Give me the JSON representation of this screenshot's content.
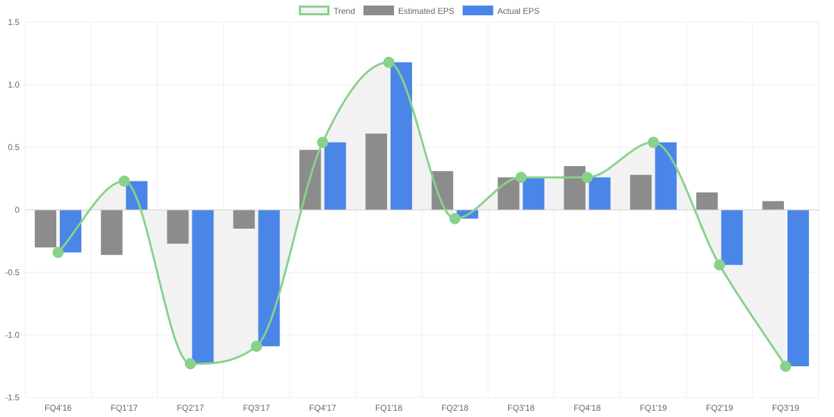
{
  "chart_data": {
    "type": "bar",
    "categories": [
      "FQ4'16",
      "FQ1'17",
      "FQ2'17",
      "FQ3'17",
      "FQ4'17",
      "FQ1'18",
      "FQ2'18",
      "FQ3'18",
      "FQ4'18",
      "FQ1'19",
      "FQ2'19",
      "FQ3'19"
    ],
    "series": [
      {
        "name": "Trend",
        "type": "line",
        "values": [
          -0.34,
          0.23,
          -1.23,
          -1.09,
          0.54,
          1.18,
          -0.07,
          0.26,
          0.26,
          0.54,
          -0.44,
          -1.25
        ]
      },
      {
        "name": "Estimated EPS",
        "type": "bar",
        "values": [
          -0.3,
          -0.36,
          -0.27,
          -0.15,
          0.48,
          0.61,
          0.31,
          0.26,
          0.35,
          0.28,
          0.14,
          0.07
        ]
      },
      {
        "name": "Actual EPS",
        "type": "bar",
        "values": [
          -0.34,
          0.23,
          -1.23,
          -1.09,
          0.54,
          1.18,
          -0.07,
          0.26,
          0.26,
          0.54,
          -0.44,
          -1.25
        ]
      }
    ],
    "yticks": [
      "-1.5",
      "-1.0",
      "-0.5",
      "0",
      "0.5",
      "1.0",
      "1.5"
    ],
    "ylim": [
      -1.5,
      1.5
    ],
    "grid": true,
    "legend_position": "top-center",
    "colors": {
      "trend_line": "#88d18a",
      "trend_fill": "#f2f2f2",
      "estimated": "#8c8c8c",
      "actual": "#4a86e8",
      "grid": "#eeeeee",
      "zero_line": "#cfcfcf"
    }
  }
}
